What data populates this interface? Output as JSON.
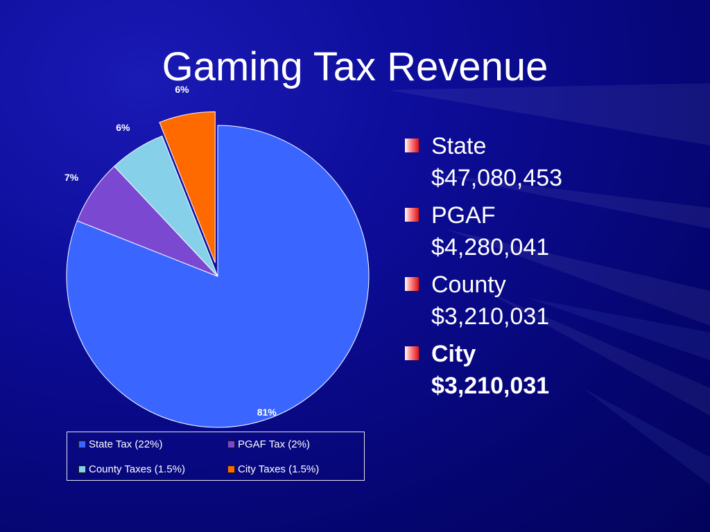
{
  "slide": {
    "title": "Gaming Tax Revenue"
  },
  "chart_data": {
    "type": "pie",
    "categories": [
      "State Tax (22%)",
      "PGAF Tax (2%)",
      "County Taxes (1.5%)",
      "City Taxes (1.5%)"
    ],
    "values": [
      81,
      7,
      6,
      6
    ],
    "data_labels": [
      "81%",
      "7%",
      "6%",
      "6%"
    ],
    "colors": [
      "#3a66ff",
      "#7b48d2",
      "#86d0ea",
      "#ff6a00"
    ],
    "exploded_slice": "City Taxes (1.5%)",
    "legend": {
      "placement": "bottom",
      "entries": [
        "State Tax (22%)",
        "PGAF Tax (2%)",
        "County Taxes (1.5%)",
        "City Taxes (1.5%)"
      ]
    }
  },
  "bullets": [
    {
      "name": "State",
      "amount": "$47,080,453",
      "bold": false
    },
    {
      "name": "PGAF",
      "amount": "$4,280,041",
      "bold": false
    },
    {
      "name": "County",
      "amount": "$3,210,031",
      "bold": false
    },
    {
      "name": "City",
      "amount": "$3,210,031",
      "bold": true
    }
  ],
  "colors": {
    "background": "#0a0a8c",
    "bullet_mark": "#e01010",
    "text": "#ffffff"
  }
}
